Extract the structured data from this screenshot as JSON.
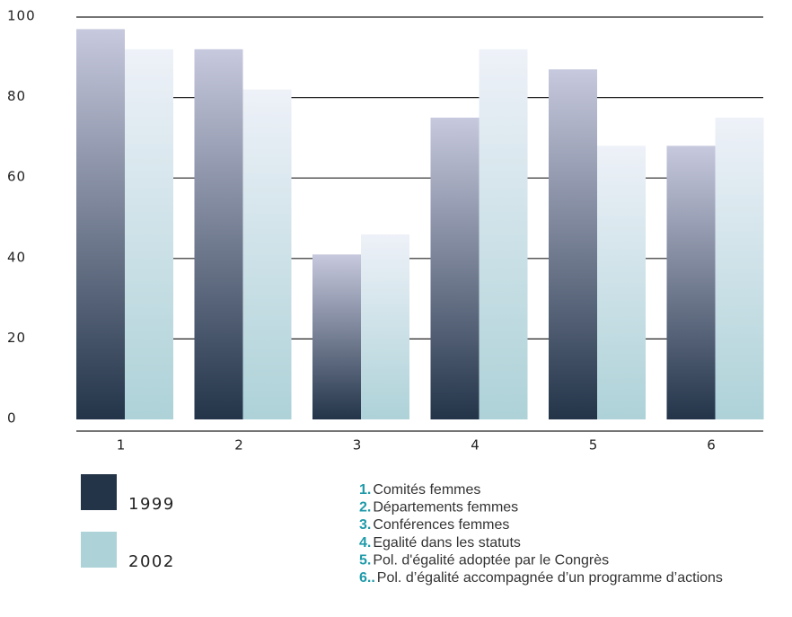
{
  "chart_data": {
    "type": "bar",
    "categories": [
      "1",
      "2",
      "3",
      "4",
      "5",
      "6"
    ],
    "series": [
      {
        "name": "1999",
        "color": "#233449",
        "values": [
          97,
          92,
          41,
          75,
          87,
          68
        ]
      },
      {
        "name": "2002",
        "color": "#add2d8",
        "values": [
          92,
          82,
          46,
          92,
          68,
          75
        ]
      }
    ],
    "ylim": [
      0,
      100
    ],
    "yticks": [
      0,
      20,
      40,
      60,
      80,
      100
    ],
    "grid": true,
    "notes": [
      {
        "number": "1.",
        "text": "Comités femmes"
      },
      {
        "number": "2.",
        "text": "Départements femmes"
      },
      {
        "number": "3.",
        "text": "Conférences femmes"
      },
      {
        "number": "4.",
        "text": "Egalité dans les statuts"
      },
      {
        "number": "5.",
        "text": "Pol. d'égalité adoptée par le Congrès"
      },
      {
        "number": "6..",
        "text": "Pol. d’égalité accompagnée d’un programme d’actions"
      }
    ]
  }
}
